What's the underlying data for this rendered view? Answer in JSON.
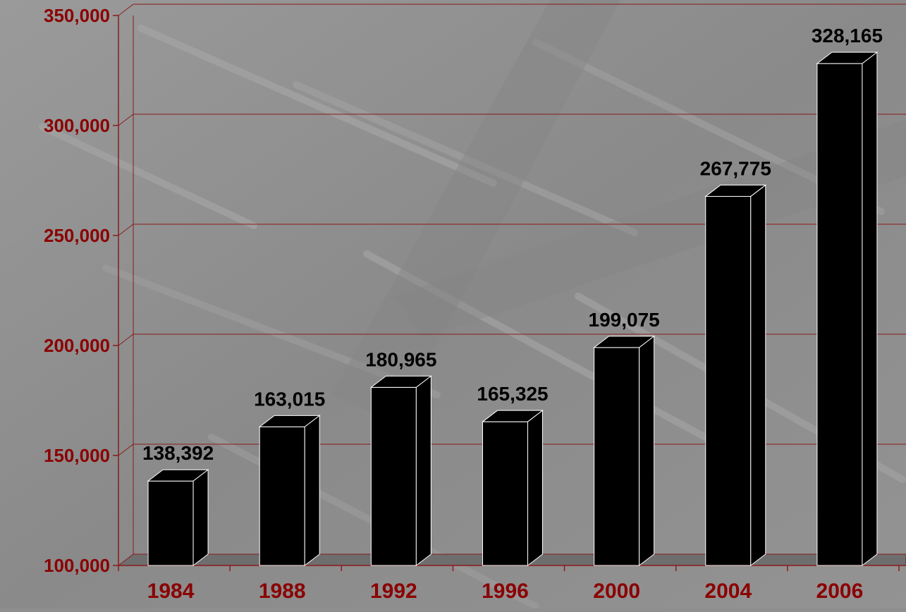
{
  "chart_data": {
    "type": "bar",
    "title": "",
    "xlabel": "",
    "ylabel": "",
    "categories": [
      "1984",
      "1988",
      "1992",
      "1996",
      "2000",
      "2004",
      "2006"
    ],
    "values": [
      138392,
      163015,
      180965,
      165325,
      199075,
      267775,
      328165
    ],
    "value_labels": [
      "138,392",
      "163,015",
      "180,965",
      "165,325",
      "199,075",
      "267,775",
      "328,165"
    ],
    "ylim": [
      100000,
      350000
    ],
    "yticks": [
      100000,
      150000,
      200000,
      250000,
      300000,
      350000
    ],
    "ytick_labels": [
      "100,000",
      "150,000",
      "200,000",
      "250,000",
      "300,000",
      "350,000"
    ],
    "grid": true,
    "legend": "none",
    "style": "3d-column",
    "colors": {
      "bar_front": "#000000",
      "bar_edge": "#ffffff",
      "axis_and_grid": "#8b1a1a",
      "tick_label": "#8b0000",
      "value_label": "#000000",
      "background": "#8f8f8f",
      "floor": "#6e6e6e"
    }
  }
}
